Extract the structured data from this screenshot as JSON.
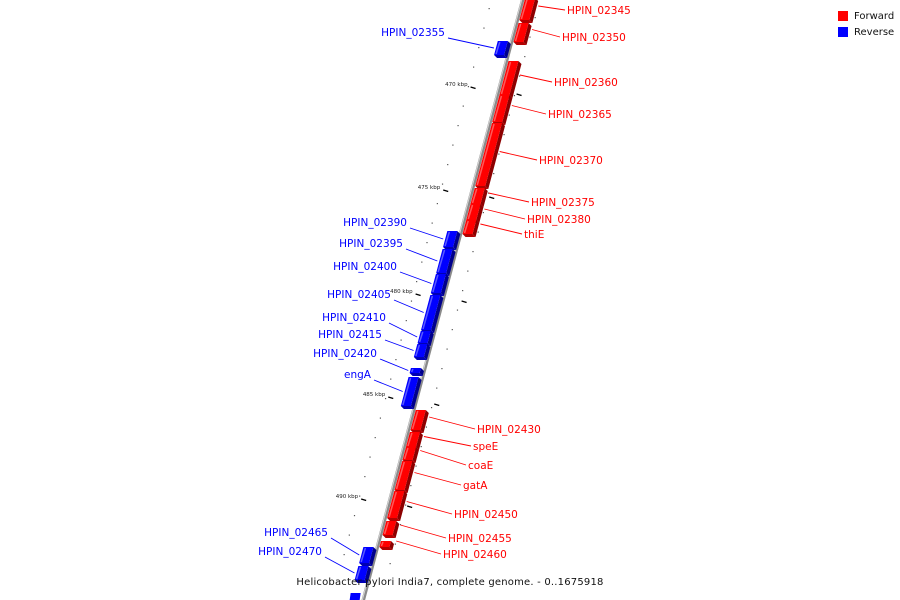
{
  "colors": {
    "forward": "#ff0000",
    "reverse": "#0000ff",
    "backbone": "#8a8a8a"
  },
  "legend": {
    "forward": "Forward",
    "reverse": "Reverse"
  },
  "caption": "Helicobacter pylori India7, complete genome. - 0..1675918",
  "ticks": [
    {
      "label": "470 kbp",
      "pos": 470
    },
    {
      "label": "475 kbp",
      "pos": 475
    },
    {
      "label": "480 kbp",
      "pos": 480
    },
    {
      "label": "485 kbp",
      "pos": 485
    },
    {
      "label": "490 kbp",
      "pos": 490
    }
  ],
  "genes": [
    {
      "name": "HPIN_02345",
      "strand": "forward"
    },
    {
      "name": "HPIN_02350",
      "strand": "forward"
    },
    {
      "name": "HPIN_02355",
      "strand": "reverse"
    },
    {
      "name": "HPIN_02360",
      "strand": "forward"
    },
    {
      "name": "HPIN_02365",
      "strand": "forward"
    },
    {
      "name": "HPIN_02370",
      "strand": "forward"
    },
    {
      "name": "HPIN_02375",
      "strand": "forward"
    },
    {
      "name": "HPIN_02380",
      "strand": "forward"
    },
    {
      "name": "thiE",
      "strand": "forward"
    },
    {
      "name": "HPIN_02390",
      "strand": "reverse"
    },
    {
      "name": "HPIN_02395",
      "strand": "reverse"
    },
    {
      "name": "HPIN_02400",
      "strand": "reverse"
    },
    {
      "name": "HPIN_02405",
      "strand": "reverse"
    },
    {
      "name": "HPIN_02410",
      "strand": "reverse"
    },
    {
      "name": "HPIN_02415",
      "strand": "reverse"
    },
    {
      "name": "HPIN_02420",
      "strand": "reverse"
    },
    {
      "name": "engA",
      "strand": "reverse"
    },
    {
      "name": "HPIN_02430",
      "strand": "forward"
    },
    {
      "name": "speE",
      "strand": "forward"
    },
    {
      "name": "coaE",
      "strand": "forward"
    },
    {
      "name": "gatA",
      "strand": "forward"
    },
    {
      "name": "HPIN_02450",
      "strand": "forward"
    },
    {
      "name": "HPIN_02455",
      "strand": "forward"
    },
    {
      "name": "HPIN_02460",
      "strand": "forward"
    },
    {
      "name": "HPIN_02465",
      "strand": "reverse"
    },
    {
      "name": "HPIN_02470",
      "strand": "reverse"
    }
  ]
}
